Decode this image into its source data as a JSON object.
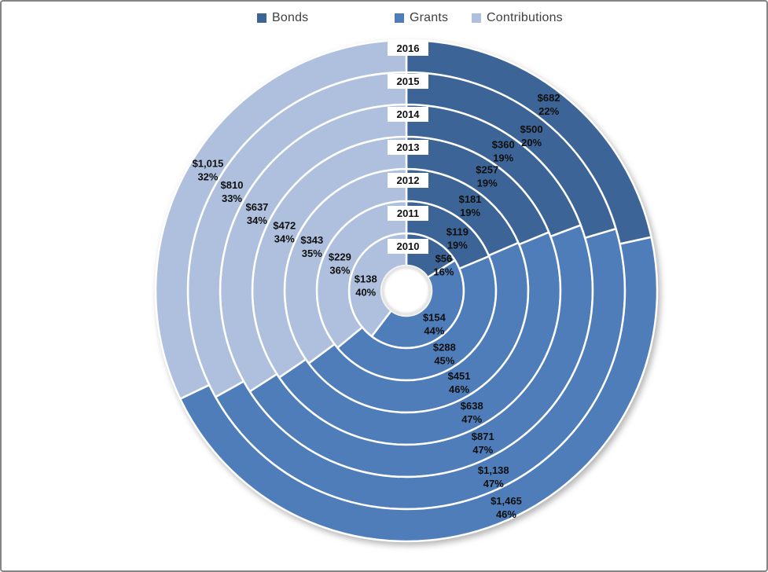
{
  "legend": {
    "position": "top",
    "items": [
      {
        "label": "Bonds",
        "color": "#3d6496"
      },
      {
        "label": "Grants",
        "color": "#4e7dba"
      },
      {
        "label": "Contributions",
        "color": "#afc0de"
      }
    ]
  },
  "chart_data": {
    "type": "pie",
    "subtype": "concentric_donut_sunburst",
    "title": "",
    "legend_position": "top",
    "direction": "clockwise",
    "start_angle_deg": 0,
    "rings_inner_to_outer": [
      "2010",
      "2011",
      "2012",
      "2013",
      "2014",
      "2015",
      "2016"
    ],
    "series": [
      {
        "name": "Bonds",
        "color": "#3d6496",
        "values": [
          56,
          119,
          181,
          257,
          360,
          500,
          682
        ],
        "value_labels": [
          "$56",
          "$119",
          "$181",
          "$257",
          "$360",
          "$500",
          "$682"
        ],
        "percent_labels": [
          "16%",
          "19%",
          "19%",
          "19%",
          "19%",
          "20%",
          "22%"
        ]
      },
      {
        "name": "Grants",
        "color": "#4e7dba",
        "values": [
          154,
          288,
          451,
          638,
          871,
          1138,
          1465
        ],
        "value_labels": [
          "$154",
          "$288",
          "$451",
          "$638",
          "$871",
          "$1,138",
          "$1,465"
        ],
        "percent_labels": [
          "44%",
          "45%",
          "46%",
          "47%",
          "47%",
          "47%",
          "46%"
        ]
      },
      {
        "name": "Contributions",
        "color": "#afc0de",
        "values": [
          138,
          229,
          343,
          472,
          637,
          810,
          1015
        ],
        "value_labels": [
          "$138",
          "$229",
          "$343",
          "$472",
          "$637",
          "$810",
          "$1,015"
        ],
        "percent_labels": [
          "40%",
          "36%",
          "35%",
          "34%",
          "34%",
          "33%",
          "32%"
        ]
      }
    ]
  }
}
